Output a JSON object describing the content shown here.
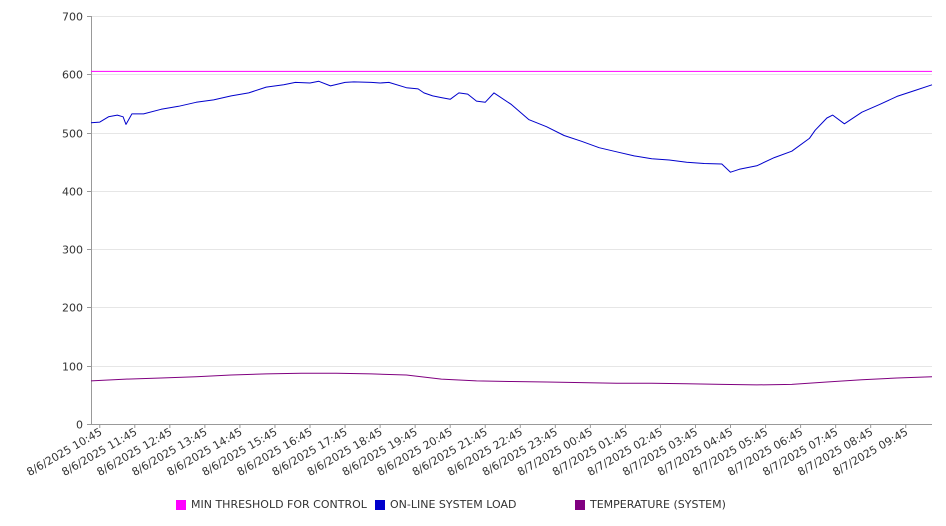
{
  "chart_data": {
    "type": "line",
    "ylim": [
      0,
      700
    ],
    "y_ticks": [
      0,
      100,
      200,
      300,
      400,
      500,
      600,
      700
    ],
    "x_tick_labels": [
      "8/6/2025 10:45",
      "8/6/2025 11:45",
      "8/6/2025 12:45",
      "8/6/2025 13:45",
      "8/6/2025 14:45",
      "8/6/2025 15:45",
      "8/6/2025 16:45",
      "8/6/2025 17:45",
      "8/6/2025 18:45",
      "8/6/2025 19:45",
      "8/6/2025 20:45",
      "8/6/2025 21:45",
      "8/6/2025 22:45",
      "8/6/2025 23:45",
      "8/7/2025 00:45",
      "8/7/2025 01:45",
      "8/7/2025 02:45",
      "8/7/2025 03:45",
      "8/7/2025 04:45",
      "8/7/2025 05:45",
      "8/7/2025 06:45",
      "8/7/2025 07:45",
      "8/7/2025 08:45",
      "8/7/2025 09:45"
    ],
    "grid": true,
    "legend_position": "bottom",
    "series": [
      {
        "name": "MIN THRESHOLD FOR CONTROL",
        "color": "#ff00ff",
        "x": [
          "8/6/2025 10:30",
          "8/7/2025 10:30"
        ],
        "values": [
          605,
          605
        ]
      },
      {
        "name": "ON-LINE SYSTEM LOAD",
        "color": "#0000cc",
        "x": [
          "8/6/2025 10:30",
          "8/6/2025 10:45",
          "8/6/2025 11:00",
          "8/6/2025 11:15",
          "8/6/2025 11:25",
          "8/6/2025 11:30",
          "8/6/2025 11:40",
          "8/6/2025 12:00",
          "8/6/2025 12:30",
          "8/6/2025 13:00",
          "8/6/2025 13:30",
          "8/6/2025 14:00",
          "8/6/2025 14:30",
          "8/6/2025 15:00",
          "8/6/2025 15:30",
          "8/6/2025 16:00",
          "8/6/2025 16:20",
          "8/6/2025 16:45",
          "8/6/2025 17:00",
          "8/6/2025 17:20",
          "8/6/2025 17:45",
          "8/6/2025 18:00",
          "8/6/2025 18:30",
          "8/6/2025 18:45",
          "8/6/2025 19:00",
          "8/6/2025 19:30",
          "8/6/2025 19:50",
          "8/6/2025 20:00",
          "8/6/2025 20:15",
          "8/6/2025 20:30",
          "8/6/2025 20:45",
          "8/6/2025 21:00",
          "8/6/2025 21:15",
          "8/6/2025 21:30",
          "8/6/2025 21:45",
          "8/6/2025 22:00",
          "8/6/2025 22:30",
          "8/6/2025 23:00",
          "8/6/2025 23:30",
          "8/7/2025 00:00",
          "8/7/2025 00:30",
          "8/7/2025 01:00",
          "8/7/2025 01:30",
          "8/7/2025 02:00",
          "8/7/2025 02:30",
          "8/7/2025 03:00",
          "8/7/2025 03:30",
          "8/7/2025 04:00",
          "8/7/2025 04:30",
          "8/7/2025 04:45",
          "8/7/2025 05:00",
          "8/7/2025 05:30",
          "8/7/2025 06:00",
          "8/7/2025 06:30",
          "8/7/2025 07:00",
          "8/7/2025 07:10",
          "8/7/2025 07:30",
          "8/7/2025 07:40",
          "8/7/2025 08:00",
          "8/7/2025 08:30",
          "8/7/2025 09:00",
          "8/7/2025 09:30",
          "8/7/2025 10:00",
          "8/7/2025 10:30"
        ],
        "values": [
          517,
          518,
          527,
          530,
          527,
          514,
          532,
          532,
          540,
          545,
          552,
          556,
          563,
          568,
          578,
          582,
          586,
          585,
          588,
          580,
          586,
          587,
          586,
          585,
          586,
          577,
          575,
          568,
          563,
          560,
          557,
          568,
          566,
          554,
          552,
          568,
          548,
          522,
          510,
          495,
          485,
          474,
          467,
          460,
          455,
          453,
          449,
          447,
          446,
          432,
          437,
          443,
          457,
          468,
          490,
          504,
          525,
          530,
          515,
          535,
          548,
          562,
          572,
          582
        ]
      },
      {
        "name": "TEMPERATURE (SYSTEM)",
        "color": "#800080",
        "x": [
          "8/6/2025 10:30",
          "8/6/2025 11:30",
          "8/6/2025 12:30",
          "8/6/2025 13:30",
          "8/6/2025 14:30",
          "8/6/2025 15:30",
          "8/6/2025 16:30",
          "8/6/2025 17:30",
          "8/6/2025 18:30",
          "8/6/2025 19:30",
          "8/6/2025 20:30",
          "8/6/2025 21:30",
          "8/6/2025 22:30",
          "8/6/2025 23:30",
          "8/7/2025 00:30",
          "8/7/2025 01:30",
          "8/7/2025 02:30",
          "8/7/2025 03:30",
          "8/7/2025 04:30",
          "8/7/2025 05:30",
          "8/7/2025 06:30",
          "8/7/2025 07:30",
          "8/7/2025 08:30",
          "8/7/2025 09:30",
          "8/7/2025 10:30"
        ],
        "values": [
          74,
          77,
          79,
          81,
          84,
          86,
          87,
          87,
          86,
          84,
          77,
          74,
          73,
          72,
          71,
          70,
          70,
          69,
          68,
          67,
          68,
          72,
          76,
          79,
          81
        ]
      }
    ]
  }
}
